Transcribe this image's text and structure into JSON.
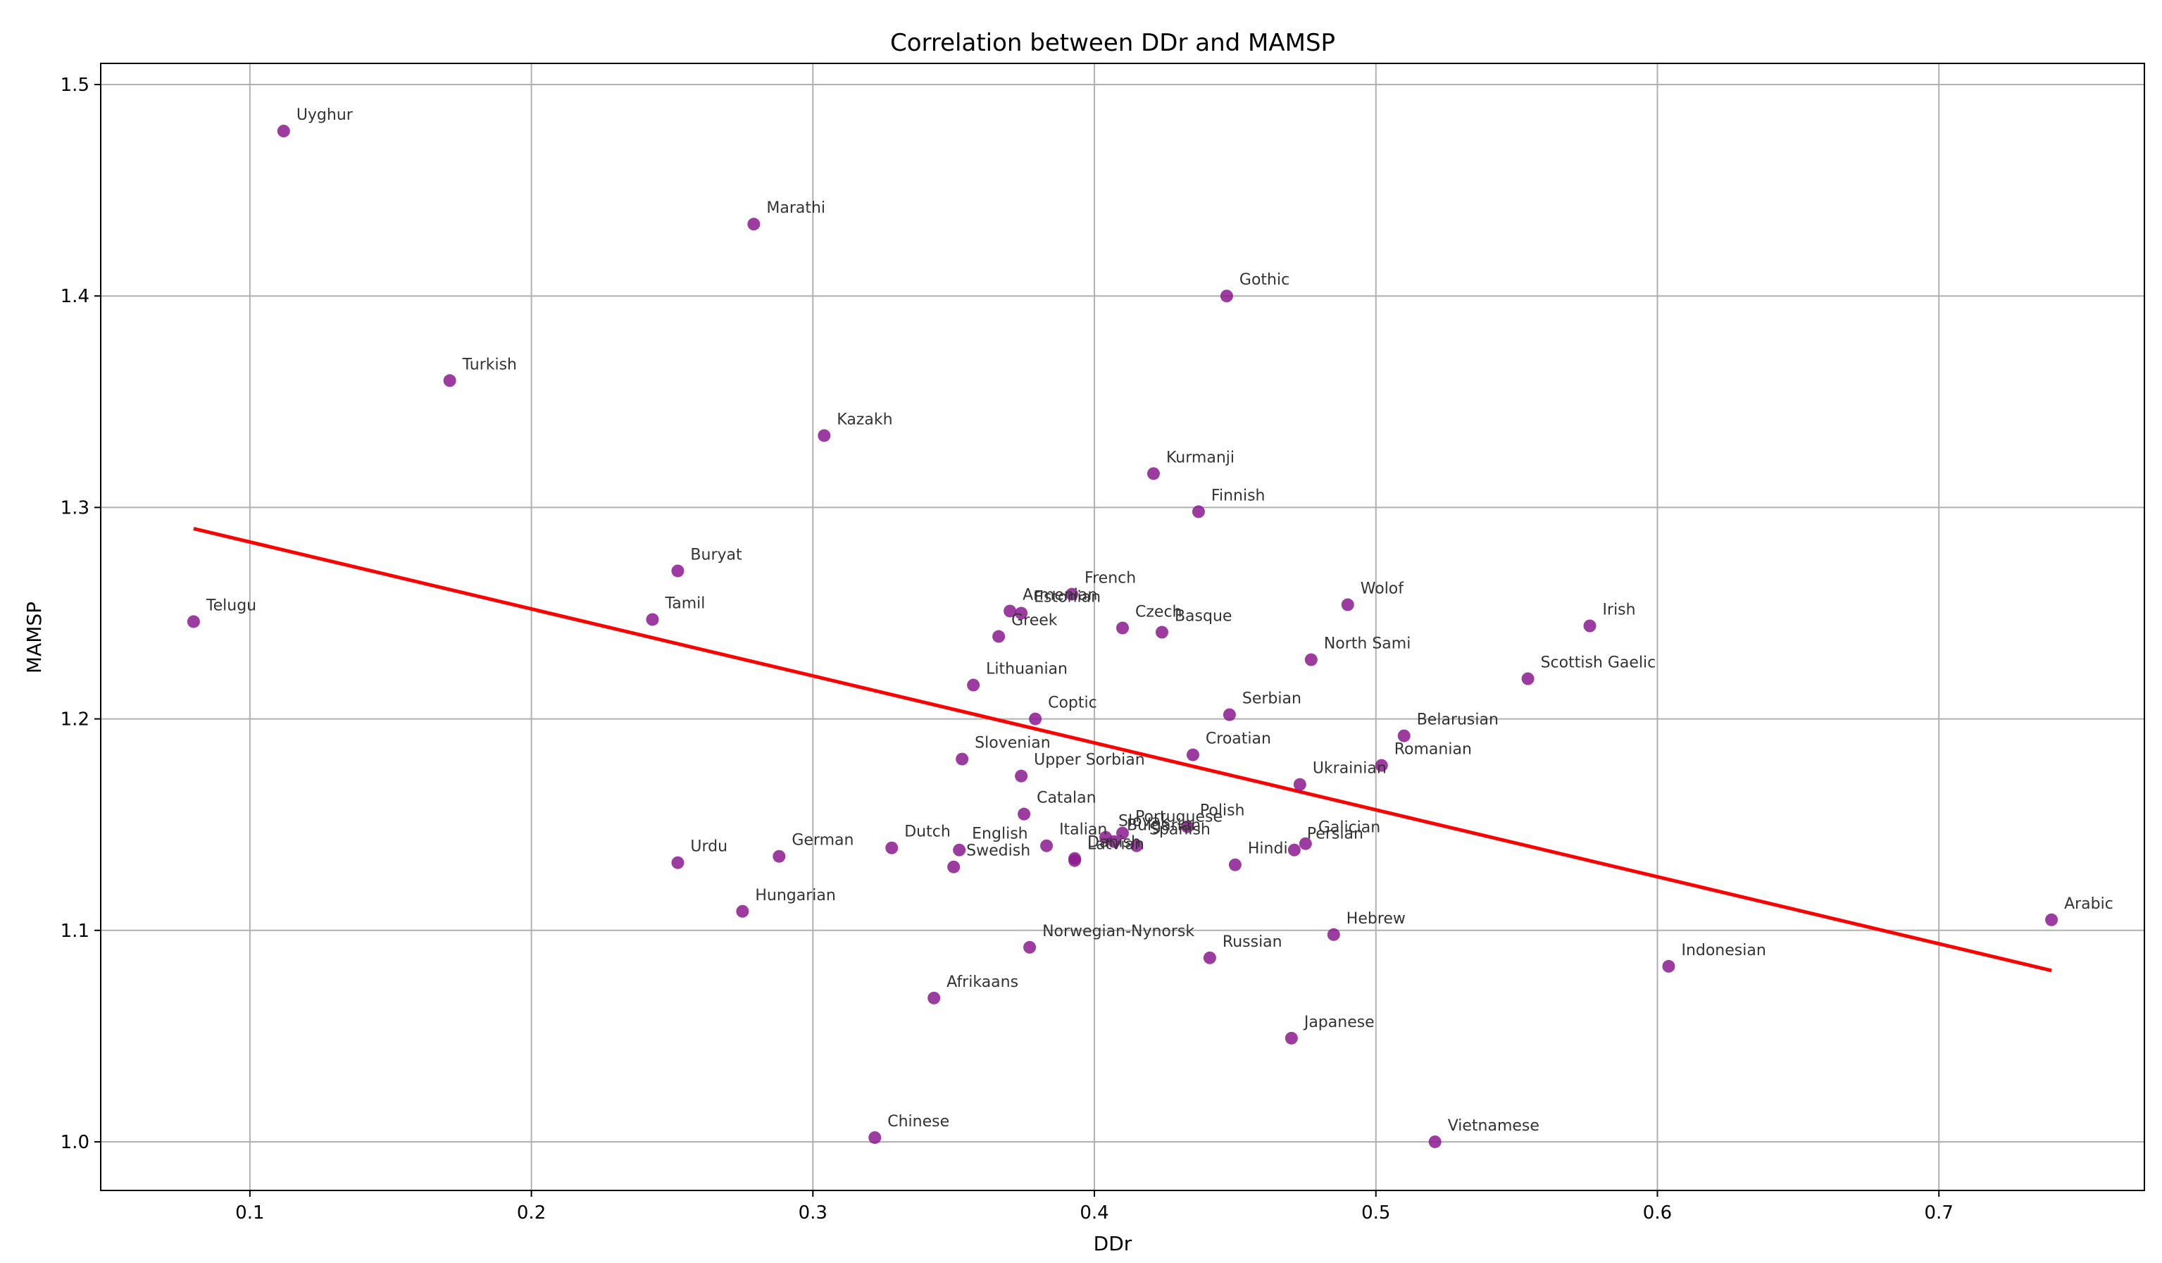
{
  "chart_data": {
    "type": "scatter",
    "title": "Correlation between DDr and MAMSP",
    "xlabel": "DDr",
    "ylabel": "MAMSP",
    "xlim": [
      0.047,
      0.773
    ],
    "ylim": [
      0.977,
      1.51
    ],
    "xticks": [
      0.1,
      0.2,
      0.3,
      0.4,
      0.5,
      0.6,
      0.7
    ],
    "xtick_labels": [
      "0.1",
      "0.2",
      "0.3",
      "0.4",
      "0.5",
      "0.6",
      "0.7"
    ],
    "yticks": [
      1.0,
      1.1,
      1.2,
      1.3,
      1.4,
      1.5
    ],
    "ytick_labels": [
      "1.0",
      "1.1",
      "1.2",
      "1.3",
      "1.4",
      "1.5"
    ],
    "grid": true,
    "point_color": "#8b1a8f",
    "trend_color": "#ff0000",
    "trend_line": {
      "x": [
        0.08,
        0.74
      ],
      "y": [
        1.29,
        1.081
      ]
    },
    "points": [
      {
        "label": "Uyghur",
        "x": 0.112,
        "y": 1.478
      },
      {
        "label": "Marathi",
        "x": 0.279,
        "y": 1.434
      },
      {
        "label": "Gothic",
        "x": 0.447,
        "y": 1.4
      },
      {
        "label": "Turkish",
        "x": 0.171,
        "y": 1.36
      },
      {
        "label": "Kazakh",
        "x": 0.304,
        "y": 1.334
      },
      {
        "label": "Kurmanji",
        "x": 0.421,
        "y": 1.316
      },
      {
        "label": "Finnish",
        "x": 0.437,
        "y": 1.298
      },
      {
        "label": "Buryat",
        "x": 0.252,
        "y": 1.27
      },
      {
        "label": "Telugu",
        "x": 0.08,
        "y": 1.246
      },
      {
        "label": "Tamil",
        "x": 0.243,
        "y": 1.247
      },
      {
        "label": "Armenian",
        "x": 0.37,
        "y": 1.251
      },
      {
        "label": "Estonian",
        "x": 0.374,
        "y": 1.25
      },
      {
        "label": "French",
        "x": 0.392,
        "y": 1.259
      },
      {
        "label": "Greek",
        "x": 0.366,
        "y": 1.239
      },
      {
        "label": "Czech",
        "x": 0.41,
        "y": 1.243
      },
      {
        "label": "Basque",
        "x": 0.424,
        "y": 1.241
      },
      {
        "label": "Wolof",
        "x": 0.49,
        "y": 1.254
      },
      {
        "label": "Irish",
        "x": 0.576,
        "y": 1.244
      },
      {
        "label": "North Sami",
        "x": 0.477,
        "y": 1.228
      },
      {
        "label": "Scottish Gaelic",
        "x": 0.554,
        "y": 1.219
      },
      {
        "label": "Lithuanian",
        "x": 0.357,
        "y": 1.216
      },
      {
        "label": "Coptic",
        "x": 0.379,
        "y": 1.2
      },
      {
        "label": "Serbian",
        "x": 0.448,
        "y": 1.202
      },
      {
        "label": "Belarusian",
        "x": 0.51,
        "y": 1.192
      },
      {
        "label": "Slovenian",
        "x": 0.353,
        "y": 1.181
      },
      {
        "label": "Croatian",
        "x": 0.435,
        "y": 1.183
      },
      {
        "label": "Romanian",
        "x": 0.502,
        "y": 1.178
      },
      {
        "label": "Upper Sorbian",
        "x": 0.374,
        "y": 1.173
      },
      {
        "label": "Ukrainian",
        "x": 0.473,
        "y": 1.169
      },
      {
        "label": "Catalan",
        "x": 0.375,
        "y": 1.155
      },
      {
        "label": "Polish",
        "x": 0.433,
        "y": 1.149
      },
      {
        "label": "Portuguese",
        "x": 0.41,
        "y": 1.146
      },
      {
        "label": "Slovak",
        "x": 0.404,
        "y": 1.144
      },
      {
        "label": "Spanish",
        "x": 0.415,
        "y": 1.14
      },
      {
        "label": "Bulgarian",
        "x": 0.407,
        "y": 1.142
      },
      {
        "label": "Galician",
        "x": 0.475,
        "y": 1.141
      },
      {
        "label": "Persian",
        "x": 0.471,
        "y": 1.138
      },
      {
        "label": "Italian",
        "x": 0.383,
        "y": 1.14
      },
      {
        "label": "Dutch",
        "x": 0.328,
        "y": 1.139
      },
      {
        "label": "English",
        "x": 0.352,
        "y": 1.138
      },
      {
        "label": "Swedish",
        "x": 0.35,
        "y": 1.13
      },
      {
        "label": "Danish",
        "x": 0.393,
        "y": 1.134
      },
      {
        "label": "Latvian",
        "x": 0.393,
        "y": 1.133
      },
      {
        "label": "Hindi",
        "x": 0.45,
        "y": 1.131
      },
      {
        "label": "German",
        "x": 0.288,
        "y": 1.135
      },
      {
        "label": "Urdu",
        "x": 0.252,
        "y": 1.132
      },
      {
        "label": "Hungarian",
        "x": 0.275,
        "y": 1.109
      },
      {
        "label": "Arabic",
        "x": 0.74,
        "y": 1.105
      },
      {
        "label": "Hebrew",
        "x": 0.485,
        "y": 1.098
      },
      {
        "label": "Norwegian-Nynorsk",
        "x": 0.377,
        "y": 1.092
      },
      {
        "label": "Russian",
        "x": 0.441,
        "y": 1.087
      },
      {
        "label": "Indonesian",
        "x": 0.604,
        "y": 1.083
      },
      {
        "label": "Afrikaans",
        "x": 0.343,
        "y": 1.068
      },
      {
        "label": "Japanese",
        "x": 0.47,
        "y": 1.049
      },
      {
        "label": "Chinese",
        "x": 0.322,
        "y": 1.002
      },
      {
        "label": "Vietnamese",
        "x": 0.521,
        "y": 1.0
      }
    ]
  }
}
